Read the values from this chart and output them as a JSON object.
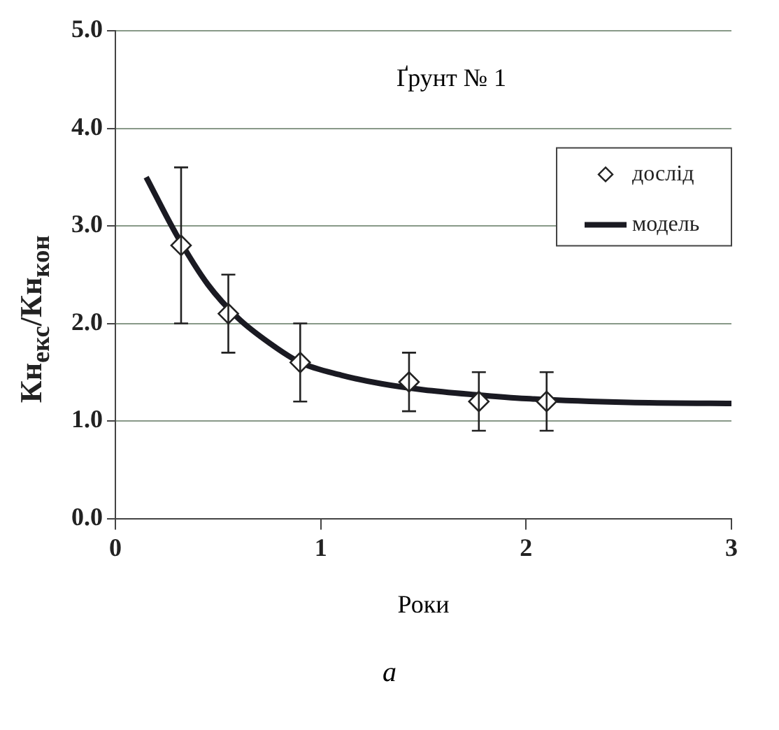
{
  "chart_data": {
    "type": "scatter",
    "title": "Ґрунт № 1",
    "xlabel": "Роки",
    "ylabel": "Кн$_{екс}$/Кн$_{кон}$",
    "annotations": [
      "а"
    ],
    "xlim": [
      0,
      3
    ],
    "xticks": [
      0,
      1,
      2,
      3
    ],
    "ylim": [
      0,
      5
    ],
    "yticks": [
      {
        "value": 0,
        "label": "0.0"
      },
      {
        "value": 1,
        "label": "1.0"
      },
      {
        "value": 2,
        "label": "2.0"
      },
      {
        "value": 3,
        "label": "3.0"
      },
      {
        "value": 4,
        "label": "4.0"
      },
      {
        "value": 5,
        "label": "5.0"
      }
    ],
    "grid": "y",
    "legend": "top right",
    "series": [
      {
        "type": "scatter",
        "name": "дослід",
        "color": "#222222",
        "marker": "diamond",
        "x": [
          0.32,
          0.55,
          0.9,
          1.43,
          1.77,
          2.1
        ],
        "values": [
          2.8,
          2.1,
          1.6,
          1.4,
          1.2,
          1.2
        ],
        "errors": [
          0.8,
          0.4,
          0.4,
          0.3,
          0.3,
          0.3
        ]
      },
      {
        "type": "line",
        "name": "модель",
        "color": "#1a1a22",
        "marker": "none",
        "line_style": "solid",
        "x": [
          0.15,
          0.3,
          0.45,
          0.6,
          0.75,
          0.9,
          1.1,
          1.3,
          1.5,
          1.75,
          2.0,
          2.5,
          3.0
        ],
        "values": [
          3.5,
          2.9,
          2.4,
          2.05,
          1.8,
          1.6,
          1.47,
          1.38,
          1.32,
          1.27,
          1.23,
          1.19,
          1.18
        ]
      }
    ]
  }
}
